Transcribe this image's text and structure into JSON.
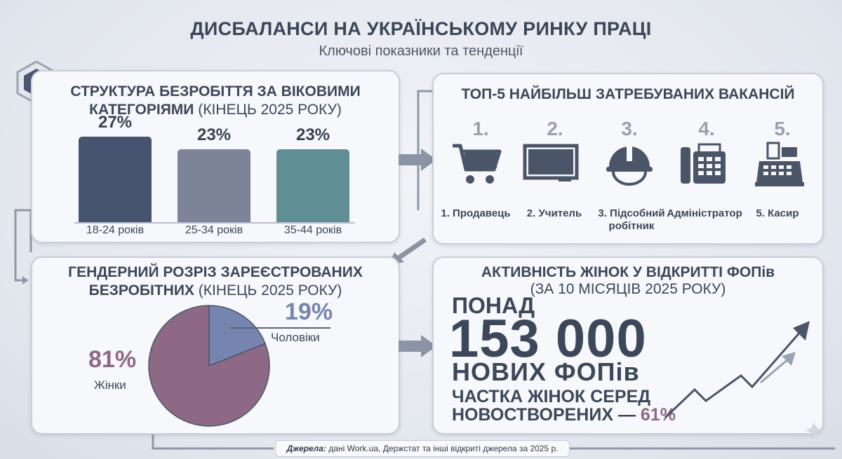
{
  "header": {
    "title": "ДИСБАЛАНСИ НА УКРАЇНСЬКОМУ РИНКУ ПРАЦІ",
    "subtitle": "Ключові показники та тенденції"
  },
  "age_panel": {
    "title_bold_1": "СТРУКТУРА БЕЗРОБІТТЯ ЗА ВІКОВИМИ",
    "title_bold_2": "КАТЕГОРІЯМИ",
    "title_norm": " (КІНЕЦЬ 2025 РОКУ)"
  },
  "vacancies_panel": {
    "title": "ТОП-5 НАЙБІЛЬШ ЗАТРЕБУВАНИХ ВАКАНСІЙ",
    "items": [
      {
        "num": "1.",
        "label": "1. Продавець",
        "icon": "shopping-cart-icon"
      },
      {
        "num": "2.",
        "label": "2. Учитель",
        "icon": "chalkboard-icon"
      },
      {
        "num": "3.",
        "label_1": "3. Підсобний",
        "label_2": "робітник",
        "icon": "hard-hat-icon"
      },
      {
        "num": "4.",
        "label": "Адміністратор",
        "icon": "office-phone-icon"
      },
      {
        "num": "5.",
        "label": "5. Касир",
        "icon": "cash-register-icon"
      }
    ]
  },
  "gender_panel": {
    "title_bold_1": "ГЕНДЕРНИЙ РОЗРІЗ ЗАРЕЄСТРОВАНИХ",
    "title_bold_2": "БЕЗРОБІТНИХ",
    "title_norm": " (КІНЕЦЬ 2025 РОКУ)"
  },
  "fop_panel": {
    "title_1": "АКТИВНІСТЬ ЖІНОК У ВІДКРИТТІ ФОПів",
    "title_2": "(ЗА 10 МІСЯЦІВ 2025 РОКУ)",
    "over": "ПОНАД",
    "number": "153 000",
    "new_fops": "НОВИХ ФОПів",
    "share_1": "ЧАСТКА ЖІНОК СЕРЕД",
    "share_2": "НОВОСТВОРЕНИХ —",
    "share_value": "61%"
  },
  "source": {
    "label": "Джерела:",
    "text": " дані Work.ua, Держстат та інші відкриті джерела за 2025 р."
  },
  "colors": {
    "bar1": "#465470",
    "bar2": "#7e8498",
    "bar3": "#5f8e94",
    "men": "#7585b0",
    "women": "#8d6986",
    "accent": "#8d6986"
  },
  "chart_data": [
    {
      "type": "bar",
      "title": "СТРУКТУРА БЕЗРОБІТТЯ ЗА ВІКОВИМИ КАТЕГОРІЯМИ (КІНЕЦЬ 2025 РОКУ)",
      "categories": [
        "18-24 років",
        "25-34 років",
        "35-44 років"
      ],
      "values": [
        27,
        23,
        23
      ],
      "value_labels": [
        "27%",
        "23%",
        "23%"
      ],
      "ylim": [
        0,
        27
      ],
      "grid": false
    },
    {
      "type": "pie",
      "title": "ГЕНДЕРНИЙ РОЗРІЗ ЗАРЕЄСТРОВАНИХ БЕЗРОБІТНИХ (КІНЕЦЬ 2025 РОКУ)",
      "categories": [
        "Чоловіки",
        "Жінки"
      ],
      "values": [
        19,
        81
      ],
      "value_labels": [
        "19%",
        "81%"
      ]
    }
  ]
}
